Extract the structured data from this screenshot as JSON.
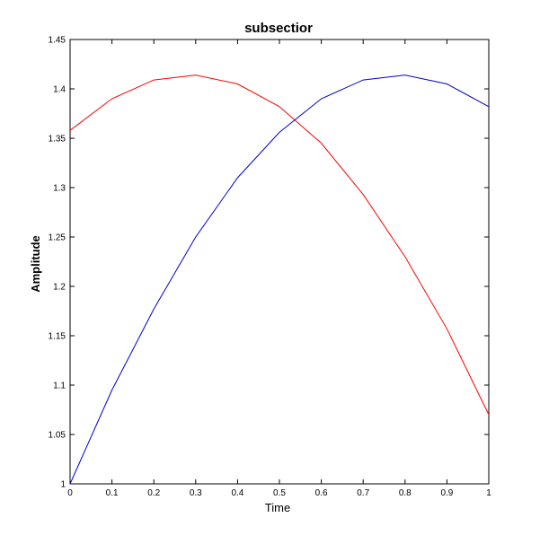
{
  "chart_data": {
    "type": "line",
    "title": "subsectior",
    "xlabel": "Time",
    "ylabel": "Amplitude",
    "xlim": [
      0,
      1
    ],
    "ylim": [
      1,
      1.45
    ],
    "xticks": [
      "0",
      "0.1",
      "0.2",
      "0.3",
      "0.4",
      "0.5",
      "0.6",
      "0.7",
      "0.8",
      "0.9",
      "1"
    ],
    "yticks": [
      "1",
      "1.05",
      "1.1",
      "1.15",
      "1.2",
      "1.25",
      "1.3",
      "1.35",
      "1.4",
      "1.45"
    ],
    "grid": false,
    "x": [
      0,
      0.1,
      0.2,
      0.3,
      0.4,
      0.5,
      0.6,
      0.7,
      0.8,
      0.9,
      1.0
    ],
    "series": [
      {
        "color": "#ff0000",
        "values": [
          1.358,
          1.39,
          1.409,
          1.414,
          1.405,
          1.382,
          1.345,
          1.293,
          1.23,
          1.157,
          1.07
        ]
      },
      {
        "color": "#0000cc",
        "values": [
          1.0,
          1.095,
          1.177,
          1.25,
          1.31,
          1.356,
          1.39,
          1.409,
          1.414,
          1.405,
          1.382
        ]
      }
    ]
  }
}
